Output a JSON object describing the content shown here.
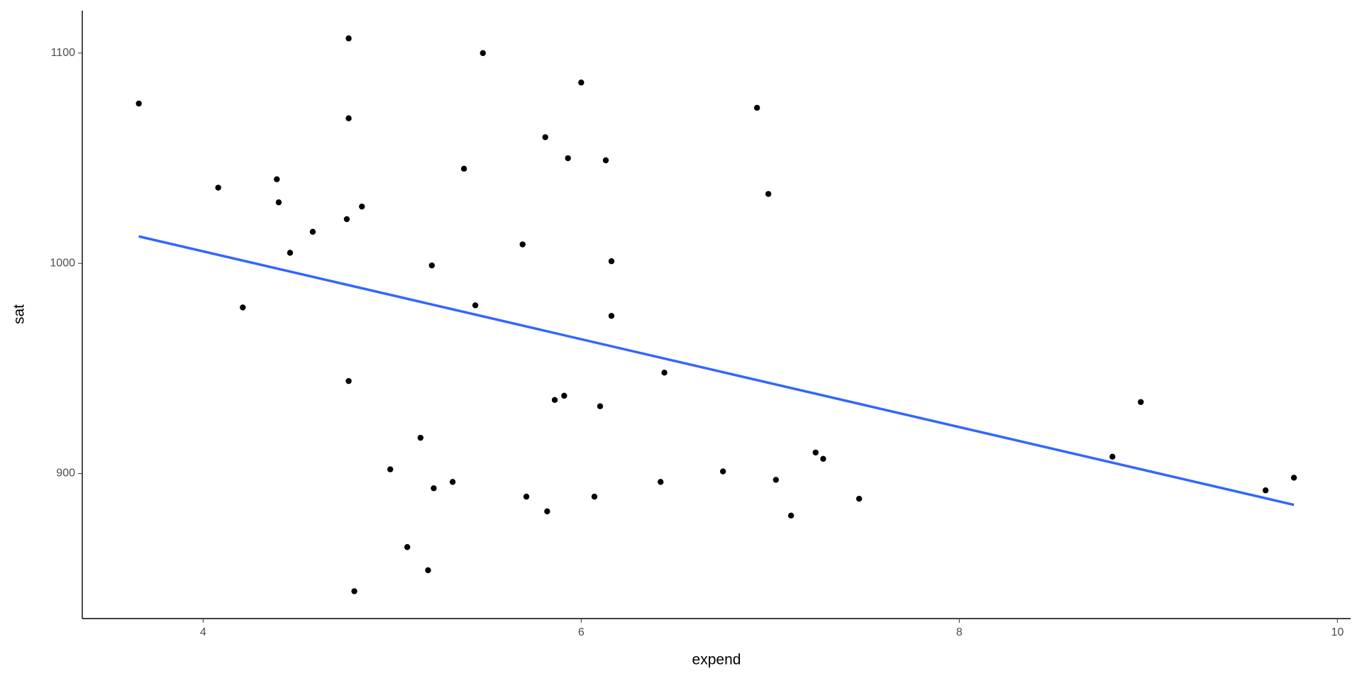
{
  "chart_data": {
    "type": "scatter",
    "x_label": "expend",
    "y_label": "sat",
    "xlim": [
      3.361,
      10.07
    ],
    "ylim": [
      831,
      1120.2
    ],
    "xticks": [
      4,
      6,
      8,
      10
    ],
    "yticks": [
      900,
      1000,
      1100
    ],
    "grid": false,
    "series": [
      {
        "color": "#000000",
        "x": [
          3.66,
          4.08,
          4.21,
          4.39,
          4.4,
          4.46,
          4.58,
          4.76,
          4.77,
          4.77,
          4.77,
          4.8,
          4.84,
          4.99,
          5.08,
          5.15,
          5.19,
          5.21,
          5.22,
          5.32,
          5.38,
          5.44,
          5.48,
          5.69,
          5.71,
          5.81,
          5.82,
          5.86,
          5.91,
          5.93,
          6.0,
          6.07,
          6.1,
          6.13,
          6.16,
          6.16,
          6.42,
          6.44,
          6.75,
          6.93,
          6.99,
          7.03,
          7.11,
          7.24,
          7.28,
          7.47,
          8.81,
          8.96,
          9.62,
          9.77
        ],
        "values": [
          1076,
          1036,
          979,
          1040,
          1029,
          1005,
          1015,
          1021,
          1107,
          1069,
          944,
          844,
          1027,
          902,
          865,
          917,
          854,
          999,
          893,
          896,
          1045,
          980,
          1100,
          1009,
          889,
          1060,
          882,
          935,
          937,
          1050,
          1086,
          889,
          932,
          1049,
          1001,
          975,
          896,
          948,
          901,
          1074,
          1033,
          897,
          880,
          910,
          907,
          888,
          908,
          934,
          892,
          898
        ]
      }
    ],
    "fit": {
      "type": "line",
      "color": "#3366ff",
      "x": [
        3.66,
        9.77
      ],
      "values": [
        1012.8,
        885.1
      ]
    }
  }
}
